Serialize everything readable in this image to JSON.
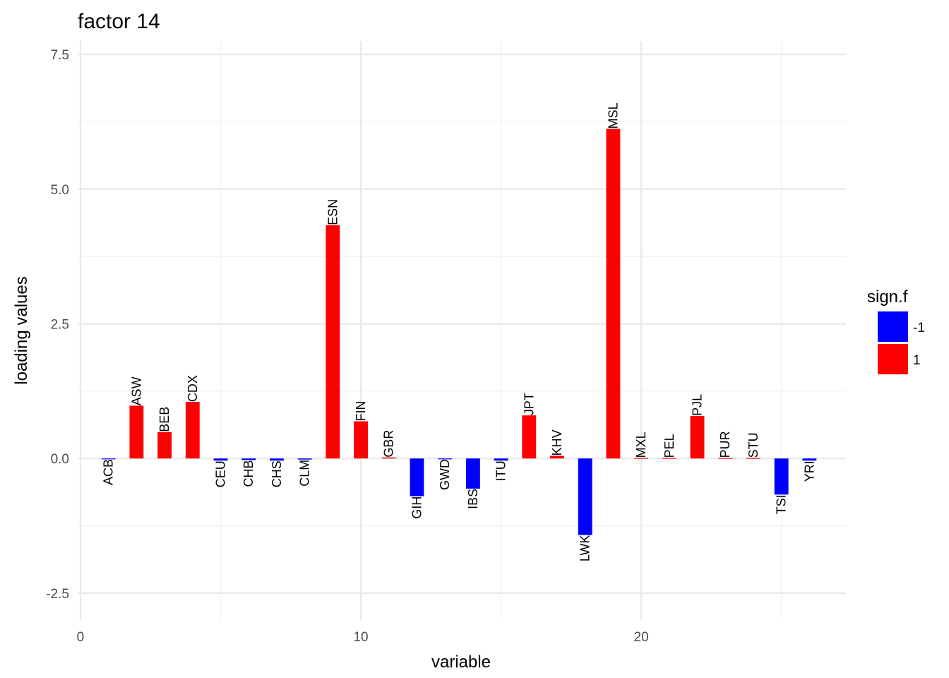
{
  "chart_data": {
    "type": "bar",
    "title": "factor 14",
    "xlabel": "variable",
    "ylabel": "loading values",
    "xlim": [
      -0.1,
      27.3
    ],
    "ylim": [
      -3.0,
      7.75
    ],
    "x_ticks": [
      0,
      10,
      20
    ],
    "x_minor_ticks": [
      5,
      15,
      25
    ],
    "y_ticks": [
      -2.5,
      0.0,
      2.5,
      5.0,
      7.5
    ],
    "y_tick_labels": [
      "-2.5",
      "0.0",
      "2.5",
      "5.0",
      "7.5"
    ],
    "y_minor_ticks": [
      -1.25,
      1.25,
      3.75,
      6.25
    ],
    "grid": true,
    "legend": {
      "title": "sign.f",
      "position": "right",
      "entries": [
        {
          "label": "-1",
          "color": "#0000ff"
        },
        {
          "label": "1",
          "color": "#ff0000"
        }
      ]
    },
    "colors": {
      "-1": "#0000ff",
      "1": "#ff0000"
    },
    "bars": [
      {
        "x": 1,
        "label": "ACB",
        "value": -0.01,
        "sign": "-1"
      },
      {
        "x": 2,
        "label": "ASW",
        "value": 0.98,
        "sign": "1"
      },
      {
        "x": 3,
        "label": "BEB",
        "value": 0.49,
        "sign": "1"
      },
      {
        "x": 4,
        "label": "CDX",
        "value": 1.05,
        "sign": "1"
      },
      {
        "x": 5,
        "label": "CEU",
        "value": -0.04,
        "sign": "-1"
      },
      {
        "x": 6,
        "label": "CHB",
        "value": -0.03,
        "sign": "-1"
      },
      {
        "x": 7,
        "label": "CHS",
        "value": -0.04,
        "sign": "-1"
      },
      {
        "x": 8,
        "label": "CLM",
        "value": -0.02,
        "sign": "-1"
      },
      {
        "x": 9,
        "label": "ESN",
        "value": 4.33,
        "sign": "1"
      },
      {
        "x": 10,
        "label": "FIN",
        "value": 0.69,
        "sign": "1"
      },
      {
        "x": 11,
        "label": "GBR",
        "value": 0.02,
        "sign": "1"
      },
      {
        "x": 12,
        "label": "GIH",
        "value": -0.7,
        "sign": "-1"
      },
      {
        "x": 13,
        "label": "GWD",
        "value": -0.01,
        "sign": "-1"
      },
      {
        "x": 14,
        "label": "IBS",
        "value": -0.56,
        "sign": "-1"
      },
      {
        "x": 15,
        "label": "ITU",
        "value": -0.04,
        "sign": "-1"
      },
      {
        "x": 16,
        "label": "JPT",
        "value": 0.8,
        "sign": "1"
      },
      {
        "x": 17,
        "label": "KHV",
        "value": 0.05,
        "sign": "1"
      },
      {
        "x": 18,
        "label": "LWK",
        "value": -1.42,
        "sign": "-1"
      },
      {
        "x": 19,
        "label": "MSL",
        "value": 6.12,
        "sign": "1"
      },
      {
        "x": 20,
        "label": "MXL",
        "value": 0.01,
        "sign": "1"
      },
      {
        "x": 21,
        "label": "PEL",
        "value": 0.01,
        "sign": "1"
      },
      {
        "x": 22,
        "label": "PJL",
        "value": 0.79,
        "sign": "1"
      },
      {
        "x": 23,
        "label": "PUR",
        "value": 0.01,
        "sign": "1"
      },
      {
        "x": 24,
        "label": "STU",
        "value": 0.01,
        "sign": "1"
      },
      {
        "x": 25,
        "label": "TSI",
        "value": -0.67,
        "sign": "-1"
      },
      {
        "x": 26,
        "label": "YRI",
        "value": -0.04,
        "sign": "-1"
      }
    ]
  }
}
